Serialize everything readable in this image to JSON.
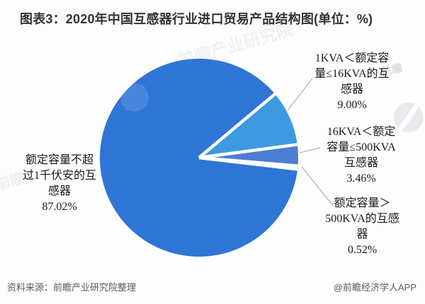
{
  "title": "图表3：2020年中国互感器行业进口贸易产品结构图(单位：%)",
  "chart_data": {
    "type": "pie",
    "title": "2020年中国互感器行业进口贸易产品结构图",
    "unit": "%",
    "start_angle_deg": 96.7,
    "direction": "clockwise",
    "legend_position": "none",
    "series": [
      {
        "label": "额定容量不超过1千伏安的互感器",
        "value": 87.02,
        "percent_label": "87.02%",
        "color": "#2e75d6"
      },
      {
        "label": "1KVA＜额定容量≤16KVA的互感器",
        "value": 9.0,
        "percent_label": "9.00%",
        "color": "#3d9ae1"
      },
      {
        "label": "16KVA＜额定容量≤500KVA互感器",
        "value": 3.46,
        "percent_label": "3.46%",
        "color": "#4b7ed2"
      },
      {
        "label": "额定容量＞500KVA的互感器",
        "value": 0.52,
        "percent_label": "0.52%",
        "color": "#3a6fc9"
      }
    ]
  },
  "footer": {
    "source": "资料来源：前瞻产业研究院整理",
    "credit": "@前瞻经济学人APP"
  },
  "watermark": {
    "brand": "前瞻产业研究院",
    "short": "前瞻"
  }
}
